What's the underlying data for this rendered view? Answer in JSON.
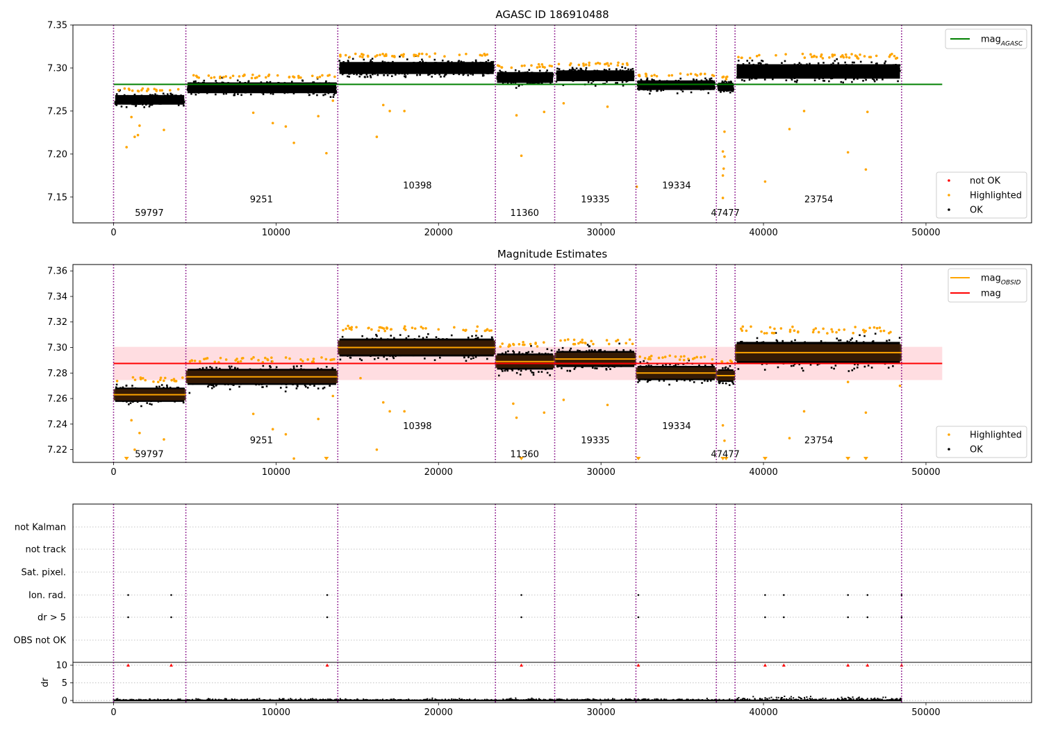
{
  "chart_data": [
    {
      "id": "agasc",
      "type": "scatter",
      "title": "AGASC ID 186910488",
      "xlim": [
        -2500,
        56500
      ],
      "ylim": [
        7.12,
        7.35
      ],
      "xticks": [
        0,
        10000,
        20000,
        30000,
        40000,
        50000
      ],
      "yticks": [
        7.15,
        7.2,
        7.25,
        7.3,
        7.35
      ],
      "ytick_labels": [
        "7.15",
        "7.20",
        "7.25",
        "7.30",
        "7.35"
      ],
      "boundaries": [
        0,
        4450,
        13800,
        23500,
        27150,
        32150,
        37100,
        38250,
        48500
      ],
      "obsids": [
        {
          "label": "59797",
          "x": 2200,
          "y": 7.128
        },
        {
          "label": "9251",
          "x": 9100,
          "y": 7.144
        },
        {
          "label": "10398",
          "x": 18700,
          "y": 7.16
        },
        {
          "label": "11360",
          "x": 25300,
          "y": 7.128
        },
        {
          "label": "19335",
          "x": 29650,
          "y": 7.144
        },
        {
          "label": "19334",
          "x": 34650,
          "y": 7.16
        },
        {
          "label": "47477",
          "x": 37650,
          "y": 7.128
        },
        {
          "label": "23754",
          "x": 43400,
          "y": 7.144
        }
      ],
      "segments": [
        {
          "x0": 0,
          "x1": 4450,
          "center": 7.263,
          "spread": 0.008
        },
        {
          "x0": 4450,
          "x1": 13800,
          "center": 7.277,
          "spread": 0.009
        },
        {
          "x0": 13800,
          "x1": 23500,
          "center": 7.3,
          "spread": 0.01
        },
        {
          "x0": 23500,
          "x1": 27150,
          "center": 7.289,
          "spread": 0.009
        },
        {
          "x0": 27150,
          "x1": 32150,
          "center": 7.291,
          "spread": 0.009
        },
        {
          "x0": 32150,
          "x1": 37100,
          "center": 7.28,
          "spread": 0.008
        },
        {
          "x0": 37100,
          "x1": 38250,
          "center": 7.278,
          "spread": 0.007
        },
        {
          "x0": 38250,
          "x1": 48500,
          "center": 7.296,
          "spread": 0.012
        }
      ],
      "highlighted": [
        [
          800,
          7.208
        ],
        [
          1300,
          7.22
        ],
        [
          1500,
          7.222
        ],
        [
          1600,
          7.233
        ],
        [
          3100,
          7.228
        ],
        [
          1100,
          7.243
        ],
        [
          8600,
          7.248
        ],
        [
          9800,
          7.236
        ],
        [
          10600,
          7.232
        ],
        [
          11100,
          7.213
        ],
        [
          12600,
          7.244
        ],
        [
          13100,
          7.201
        ],
        [
          13500,
          7.262
        ],
        [
          16200,
          7.22
        ],
        [
          16600,
          7.257
        ],
        [
          17000,
          7.25
        ],
        [
          17900,
          7.25
        ],
        [
          25100,
          7.198
        ],
        [
          24800,
          7.245
        ],
        [
          26500,
          7.249
        ],
        [
          27700,
          7.259
        ],
        [
          30400,
          7.255
        ],
        [
          32200,
          7.162
        ],
        [
          37500,
          7.203
        ],
        [
          37600,
          7.197
        ],
        [
          37550,
          7.183
        ],
        [
          37500,
          7.175
        ],
        [
          37500,
          7.149
        ],
        [
          37600,
          7.226
        ],
        [
          40100,
          7.168
        ],
        [
          41600,
          7.229
        ],
        [
          42500,
          7.25
        ],
        [
          45200,
          7.202
        ],
        [
          46300,
          7.182
        ],
        [
          46400,
          7.249
        ]
      ],
      "hlines": [
        {
          "label": "mag_AGASC",
          "y": 7.281,
          "color": "#008000",
          "x0": 0,
          "x1": 51000
        }
      ],
      "legends": [
        {
          "position": "top-right",
          "entries": [
            {
              "text": "mag",
              "sub": "AGASC",
              "kind": "line",
              "color": "#008000"
            }
          ]
        },
        {
          "position": "bottom-right",
          "entries": [
            {
              "text": "not OK",
              "kind": "dot",
              "color": "#ff0000"
            },
            {
              "text": "Highlighted",
              "kind": "dot",
              "color": "#ffa500"
            },
            {
              "text": "OK",
              "kind": "dot",
              "color": "#000000"
            }
          ]
        }
      ]
    },
    {
      "id": "estimates",
      "type": "scatter",
      "title": "Magnitude Estimates",
      "xlim": [
        -2500,
        56500
      ],
      "ylim": [
        7.21,
        7.365
      ],
      "xticks": [
        0,
        10000,
        20000,
        30000,
        40000,
        50000
      ],
      "yticks": [
        7.22,
        7.24,
        7.26,
        7.28,
        7.3,
        7.32,
        7.34,
        7.36
      ],
      "ytick_labels": [
        "7.22",
        "7.24",
        "7.26",
        "7.28",
        "7.30",
        "7.32",
        "7.34",
        "7.36"
      ],
      "boundaries": [
        0,
        4450,
        13800,
        23500,
        27150,
        32150,
        37100,
        38250,
        48500
      ],
      "obsids": [
        {
          "label": "59797",
          "x": 2200,
          "y": 7.214
        },
        {
          "label": "9251",
          "x": 9100,
          "y": 7.225
        },
        {
          "label": "10398",
          "x": 18700,
          "y": 7.236
        },
        {
          "label": "11360",
          "x": 25300,
          "y": 7.214
        },
        {
          "label": "19335",
          "x": 29650,
          "y": 7.225
        },
        {
          "label": "19334",
          "x": 34650,
          "y": 7.236
        },
        {
          "label": "47477",
          "x": 37650,
          "y": 7.214
        },
        {
          "label": "23754",
          "x": 43400,
          "y": 7.225
        }
      ],
      "segments": [
        {
          "x0": 0,
          "x1": 4450,
          "center": 7.263,
          "spread": 0.008
        },
        {
          "x0": 4450,
          "x1": 13800,
          "center": 7.277,
          "spread": 0.009
        },
        {
          "x0": 13800,
          "x1": 23500,
          "center": 7.3,
          "spread": 0.01
        },
        {
          "x0": 23500,
          "x1": 27150,
          "center": 7.289,
          "spread": 0.009
        },
        {
          "x0": 27150,
          "x1": 32150,
          "center": 7.291,
          "spread": 0.009
        },
        {
          "x0": 32150,
          "x1": 37100,
          "center": 7.28,
          "spread": 0.008
        },
        {
          "x0": 37100,
          "x1": 38250,
          "center": 7.278,
          "spread": 0.007
        },
        {
          "x0": 38250,
          "x1": 48500,
          "center": 7.296,
          "spread": 0.012
        }
      ],
      "highlighted": [
        [
          1300,
          7.22
        ],
        [
          1600,
          7.233
        ],
        [
          3100,
          7.228
        ],
        [
          1100,
          7.243
        ],
        [
          8600,
          7.248
        ],
        [
          9800,
          7.236
        ],
        [
          10600,
          7.232
        ],
        [
          11100,
          7.213
        ],
        [
          12600,
          7.244
        ],
        [
          13500,
          7.262
        ],
        [
          15200,
          7.276
        ],
        [
          16200,
          7.22
        ],
        [
          16600,
          7.257
        ],
        [
          17000,
          7.25
        ],
        [
          17900,
          7.25
        ],
        [
          24800,
          7.245
        ],
        [
          24600,
          7.256
        ],
        [
          26500,
          7.249
        ],
        [
          27700,
          7.259
        ],
        [
          30400,
          7.255
        ],
        [
          37500,
          7.239
        ],
        [
          37600,
          7.227
        ],
        [
          41600,
          7.229
        ],
        [
          42500,
          7.25
        ],
        [
          45200,
          7.273
        ],
        [
          46300,
          7.249
        ],
        [
          48400,
          7.27
        ]
      ],
      "below_range": [
        800,
        13100,
        25100,
        32300,
        37500,
        37700,
        40100,
        45200,
        46300
      ],
      "hlines": [
        {
          "label": "mag",
          "y": 7.2875,
          "color": "#ff0000",
          "x0": 0,
          "x1": 51000
        }
      ],
      "band": {
        "y0": 7.2745,
        "y1": 7.3005,
        "x0": 0,
        "x1": 51000,
        "color": "#ffdde1"
      },
      "legends": [
        {
          "position": "top-right",
          "entries": [
            {
              "text": "mag",
              "sub": "OBSID",
              "kind": "line",
              "color": "#ffa500"
            },
            {
              "text": "mag",
              "kind": "line",
              "color": "#ff0000"
            }
          ]
        },
        {
          "position": "bottom-right",
          "entries": [
            {
              "text": "Highlighted",
              "kind": "dot",
              "color": "#ffa500"
            },
            {
              "text": "OK",
              "kind": "dot",
              "color": "#000000"
            }
          ]
        }
      ]
    },
    {
      "id": "flags",
      "type": "scatter",
      "xlim": [
        -2500,
        56500
      ],
      "xticks": [
        0,
        10000,
        20000,
        30000,
        40000,
        50000
      ],
      "boundaries": [
        0,
        4450,
        13800,
        23500,
        27150,
        32150,
        37100,
        38250,
        48500
      ],
      "categories": [
        "not Kalman",
        "not track",
        "Sat. pixel.",
        "Ion. rad.",
        "dr > 5",
        "OBS not OK"
      ],
      "flagged_times": [
        900,
        3550,
        13150,
        25100,
        32300,
        40100,
        41250,
        45200,
        46400,
        48500
      ],
      "flag_rows": [
        "Ion. rad.",
        "dr > 5"
      ],
      "ylabel": "dr",
      "dr_yticks": [
        0,
        5,
        10
      ],
      "dr_ylim": [
        -0.6,
        10.8
      ]
    }
  ]
}
